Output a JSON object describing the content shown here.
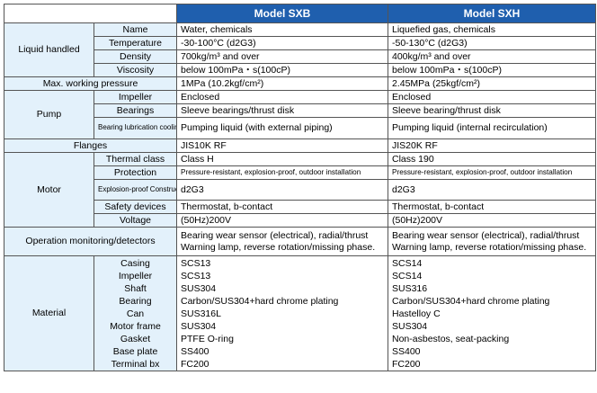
{
  "header": {
    "col1": "Model SXB",
    "col2": "Model SXH"
  },
  "liquid_handled": {
    "label": "Liquid handled",
    "rows": [
      {
        "name": "Name",
        "sxb": "Water, chemicals",
        "sxh": "Liquefied gas, chemicals"
      },
      {
        "name": "Temperature",
        "sxb": "-30-100°C (d2G3)",
        "sxh": "-50-130°C (d2G3)"
      },
      {
        "name": "Density",
        "sxb": "700kg/m³ and over",
        "sxh": "400kg/m³ and over"
      },
      {
        "name": "Viscosity",
        "sxb": "below 100mPa・s(100cP)",
        "sxh": "below 100mPa・s(100cP)"
      }
    ]
  },
  "max_pressure": {
    "label": "Max. working pressure",
    "sxb": "1MPa (10.2kgf/cm²)",
    "sxh": "2.45MPa (25kgf/cm²)"
  },
  "pump": {
    "label": "Pump",
    "rows": [
      {
        "name": "Impeller",
        "sxb": "Enclosed",
        "sxh": "Enclosed"
      },
      {
        "name": "Bearings",
        "sxb": "Sleeve bearings/thrust disk",
        "sxh": "Sleeve bearing/thrust disk"
      },
      {
        "name": "Bearing lubrication cooling method",
        "sxb": "Pumping liquid (with external piping)",
        "sxh": "Pumping liquid (internal recirculation)"
      }
    ]
  },
  "flanges": {
    "label": "Flanges",
    "sxb": "JIS10K RF",
    "sxh": "JIS20K RF"
  },
  "motor": {
    "label": "Motor",
    "rows": [
      {
        "name": "Thermal class",
        "sxb": "Class H",
        "sxh": "Class 190"
      },
      {
        "name": "Protection",
        "sxb": "Pressure-resistant, explosion-proof, outdoor installation",
        "sxh": "Pressure-resistant, explosion-proof, outdoor installation"
      },
      {
        "name": "Explosion-proof Construction",
        "sxb": "d2G3",
        "sxh": "d2G3"
      },
      {
        "name": "Safety devices",
        "sxb": "Thermostat, b-contact",
        "sxh": "Thermostat, b-contact"
      },
      {
        "name": "Voltage",
        "sxb": "(50Hz)200V",
        "sxh": "(50Hz)200V"
      }
    ]
  },
  "operation": {
    "label": "Operation monitoring/detectors",
    "sxb_line1": "Bearing wear sensor (electrical), radial/thrust",
    "sxb_line2": "Warning lamp, reverse rotation/missing phase.",
    "sxh_line1": "Bearing wear sensor (electrical), radial/thrust",
    "sxh_line2": "Warning lamp, reverse rotation/missing phase."
  },
  "material": {
    "label": "Material",
    "names": [
      "Casing",
      "Impeller",
      "Shaft",
      "Bearing",
      "Can",
      "Motor frame",
      "Gasket",
      "Base plate",
      "Terminal bx"
    ],
    "sxb": [
      "SCS13",
      "SCS13",
      "SUS304",
      "Carbon/SUS304+hard chrome plating",
      "SUS316L",
      "SUS304",
      "PTFE O-ring",
      "SS400",
      "FC200"
    ],
    "sxh": [
      "SCS14",
      "SCS14",
      "SUS316",
      "Carbon/SUS304+hard chrome plating",
      "Hastelloy C",
      "SUS304",
      "Non-asbestos, seat-packing",
      "SS400",
      "FC200"
    ]
  }
}
